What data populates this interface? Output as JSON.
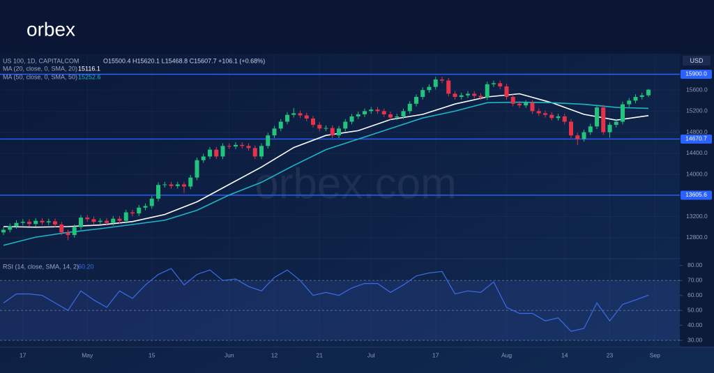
{
  "chart_data": {
    "type": "candlestick",
    "logo": "orbex",
    "watermark": "orbex.com",
    "title": "US 100, 1D, CAPITALCOM",
    "info": "O15500.4 H15620.1 L15468.8 C15607.7 +106.1 (+0.68%)",
    "currency": "USD",
    "up_color": "#22c37c",
    "down_color": "#e5334b",
    "open": [
      12900,
      12950,
      13020,
      13080,
      13100,
      13060,
      13120,
      13090,
      13110,
      13050,
      12900,
      12850,
      13000,
      13180,
      13150,
      13100,
      13120,
      13080,
      13160,
      13120,
      13280,
      13260,
      13370,
      13400,
      13540,
      13800,
      13810,
      13780,
      13810,
      13770,
      13940,
      14270,
      14340,
      14470,
      14340,
      14540,
      14530,
      14560,
      14540,
      14500,
      14340,
      14540,
      14740,
      14870,
      15000,
      15130,
      15160,
      15120,
      15060,
      14940,
      14870,
      14880,
      14740,
      14870,
      15000,
      15100,
      15140,
      15200,
      15230,
      15200,
      15140,
      15080,
      15100,
      15200,
      15340,
      15470,
      15600,
      15660,
      15800,
      15780,
      15530,
      15470,
      15500,
      15530,
      15490,
      15460,
      15710,
      15730,
      15670,
      15470,
      15340,
      15310,
      15360,
      15200,
      15160,
      15130,
      15070,
      15100,
      15000,
      14740,
      14670,
      14800,
      14910,
      15270,
      14800,
      14940,
      15000,
      15330,
      15400,
      15470,
      15500.4
    ],
    "high": [
      13000,
      13070,
      13130,
      13150,
      13150,
      13170,
      13170,
      13160,
      13160,
      13100,
      12950,
      13050,
      13230,
      13230,
      13200,
      13170,
      13170,
      13210,
      13210,
      13330,
      13330,
      13420,
      13450,
      13590,
      13850,
      13860,
      13860,
      13860,
      13860,
      13990,
      14320,
      14390,
      14520,
      14520,
      14590,
      14590,
      14610,
      14610,
      14590,
      14550,
      14590,
      14790,
      14920,
      15050,
      15180,
      15260,
      15210,
      15170,
      15110,
      14990,
      14930,
      14930,
      14920,
      15050,
      15150,
      15190,
      15250,
      15280,
      15280,
      15250,
      15190,
      15150,
      15250,
      15390,
      15520,
      15650,
      15710,
      15850,
      15850,
      15830,
      15580,
      15550,
      15580,
      15580,
      15540,
      15760,
      15780,
      15780,
      15720,
      15520,
      15390,
      15410,
      15410,
      15250,
      15210,
      15180,
      15150,
      15150,
      15050,
      14790,
      14850,
      14960,
      15320,
      15320,
      14990,
      15050,
      15380,
      15450,
      15520,
      15550,
      15620.1
    ],
    "low": [
      12850,
      12900,
      12970,
      13030,
      13010,
      13010,
      13040,
      13040,
      13000,
      12850,
      12750,
      12800,
      12950,
      13100,
      13050,
      13050,
      13030,
      13030,
      13070,
      13070,
      13210,
      13210,
      13320,
      13350,
      13490,
      13750,
      13730,
      13730,
      13650,
      13720,
      13890,
      14220,
      14290,
      14290,
      14290,
      14480,
      14480,
      14490,
      14450,
      14290,
      14290,
      14490,
      14690,
      14820,
      14950,
      15080,
      15070,
      15010,
      14890,
      14820,
      14820,
      14690,
      14690,
      14820,
      14950,
      15050,
      15090,
      15150,
      15150,
      15090,
      15030,
      15030,
      15050,
      15150,
      15290,
      15420,
      15550,
      15610,
      15730,
      15480,
      15420,
      15420,
      15450,
      15440,
      15410,
      15410,
      15660,
      15620,
      15420,
      15290,
      15260,
      15260,
      15150,
      15110,
      15080,
      15020,
      15020,
      14950,
      14690,
      14560,
      14620,
      14750,
      14860,
      14750,
      14700,
      14890,
      14950,
      15280,
      15350,
      15420,
      15468.8
    ],
    "close": [
      12950,
      13020,
      13080,
      13100,
      13060,
      13120,
      13090,
      13110,
      13050,
      12900,
      12850,
      13000,
      13180,
      13150,
      13100,
      13120,
      13080,
      13160,
      13120,
      13280,
      13260,
      13370,
      13400,
      13540,
      13800,
      13810,
      13780,
      13810,
      13770,
      13940,
      14270,
      14340,
      14470,
      14340,
      14540,
      14530,
      14560,
      14540,
      14500,
      14340,
      14540,
      14740,
      14870,
      15000,
      15130,
      15160,
      15120,
      15060,
      14940,
      14870,
      14880,
      14740,
      14870,
      15000,
      15100,
      15140,
      15200,
      15230,
      15200,
      15140,
      15080,
      15100,
      15200,
      15340,
      15470,
      15600,
      15660,
      15800,
      15780,
      15530,
      15470,
      15500,
      15530,
      15490,
      15460,
      15710,
      15730,
      15670,
      15470,
      15340,
      15310,
      15360,
      15200,
      15160,
      15130,
      15070,
      15100,
      15000,
      14740,
      14670,
      14800,
      14910,
      15270,
      14800,
      14940,
      15000,
      15330,
      15400,
      15470,
      15500.4,
      15607.7
    ],
    "series": [
      {
        "name": "MA (20, close, 0, SMA, 20)",
        "value_label": "15116.1",
        "color": "#ffffff",
        "x": [
          0,
          5,
          10,
          15,
          20,
          25,
          30,
          35,
          40,
          45,
          50,
          55,
          60,
          65,
          70,
          75,
          80,
          85,
          90,
          95,
          100
        ],
        "values": [
          13010,
          13000,
          13010,
          13040,
          13105,
          13240,
          13480,
          13810,
          14140,
          14510,
          14740,
          14830,
          15040,
          15140,
          15335,
          15470,
          15530,
          15360,
          15140,
          15030,
          15116.1
        ]
      },
      {
        "name": "MA (50, close, 0, SMA, 50)",
        "value_label": "15252.6",
        "color": "#1fb5c5",
        "x": [
          0,
          5,
          10,
          15,
          20,
          25,
          30,
          35,
          40,
          45,
          50,
          55,
          60,
          65,
          70,
          75,
          80,
          85,
          90,
          95,
          100
        ],
        "values": [
          12654,
          12810,
          12900,
          12970,
          13050,
          13130,
          13320,
          13610,
          13850,
          14170,
          14470,
          14670,
          14870,
          15070,
          15200,
          15360,
          15370,
          15360,
          15330,
          15270,
          15252.6
        ]
      }
    ],
    "levels": [
      {
        "value": 15900,
        "label": "15900.0"
      },
      {
        "value": 14670.7,
        "label": "14670.7"
      },
      {
        "value": 13605.6,
        "label": "13605.6"
      }
    ],
    "level_color": "#2962ff",
    "ylim": [
      12415,
      16290
    ],
    "yticks": [
      {
        "value": 12800,
        "label": "12800.0"
      },
      {
        "value": 13200,
        "label": "13200.0"
      },
      {
        "value": 13600,
        "label": "13600.0"
      },
      {
        "value": 14000,
        "label": "14000.0"
      },
      {
        "value": 14400,
        "label": "14400.0"
      },
      {
        "value": 14800,
        "label": "14800.0"
      },
      {
        "value": 15200,
        "label": "15200.0"
      },
      {
        "value": 15600,
        "label": "15600.0"
      }
    ],
    "xticks": [
      {
        "value": 3,
        "label": "17"
      },
      {
        "value": 13,
        "label": "May"
      },
      {
        "value": 23,
        "label": "15"
      },
      {
        "value": 35,
        "label": "Jun"
      },
      {
        "value": 42,
        "label": "12"
      },
      {
        "value": 49,
        "label": "21"
      },
      {
        "value": 57,
        "label": "Jul"
      },
      {
        "value": 67,
        "label": "17"
      },
      {
        "value": 78,
        "label": "Aug"
      },
      {
        "value": 87,
        "label": "14"
      },
      {
        "value": 94,
        "label": "23"
      },
      {
        "value": 101,
        "label": "Sep"
      }
    ],
    "rsi": {
      "name": "RSI (14, close, SMA, 14, 2)",
      "value_label": "60.20",
      "color": "#3d6ce8",
      "x": [
        0,
        2,
        4,
        6,
        8,
        10,
        12,
        14,
        16,
        18,
        20,
        22,
        24,
        26,
        28,
        30,
        32,
        34,
        36,
        38,
        40,
        42,
        44,
        46,
        48,
        50,
        52,
        54,
        56,
        58,
        60,
        62,
        64,
        66,
        68,
        70,
        72,
        74,
        76,
        78,
        80,
        82,
        84,
        86,
        88,
        90,
        92,
        94,
        96,
        98,
        100
      ],
      "values": [
        55,
        61,
        61,
        60,
        55,
        50,
        63,
        57,
        52,
        63,
        58,
        67,
        74,
        78,
        67,
        74,
        77,
        70,
        71,
        66,
        63,
        72,
        77,
        70,
        60,
        62,
        60,
        65,
        68,
        68,
        62,
        67,
        73,
        75,
        76,
        61,
        63,
        62,
        69,
        52,
        48,
        48,
        43,
        45,
        36,
        38,
        55,
        43,
        54,
        57,
        60.2
      ],
      "ylim": [
        25.4,
        84.1
      ],
      "yticks": [
        {
          "value": 30,
          "label": "30.00"
        },
        {
          "value": 40,
          "label": "40.00"
        },
        {
          "value": 50,
          "label": "50.00"
        },
        {
          "value": 60,
          "label": "60.00"
        },
        {
          "value": 70,
          "label": "70.00"
        },
        {
          "value": 80,
          "label": "80.00"
        }
      ],
      "bands": [
        30,
        50,
        70
      ]
    }
  }
}
